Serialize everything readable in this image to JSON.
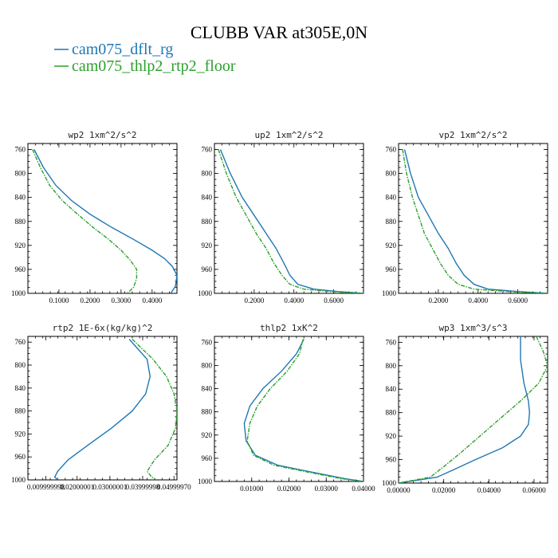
{
  "title": "CLUBB VAR at305E,0N",
  "legend": [
    {
      "name": "cam075_dflt_rg",
      "color": "#1f77b4"
    },
    {
      "name": "cam075_thlp2_rtp2_floor",
      "color": "#2ca02c"
    }
  ],
  "chart_data": [
    {
      "type": "line",
      "title": "wp2  1xm^2/s^2",
      "xlim": [
        0.0,
        0.48
      ],
      "ylim": [
        1000,
        750
      ],
      "xticks": [
        "0.1000",
        "0.2000",
        "0.3000",
        "0.4000"
      ],
      "xtick_values": [
        0.1,
        0.2,
        0.3,
        0.4
      ],
      "yticks": [
        "760",
        "800",
        "840",
        "880",
        "920",
        "960",
        "1000"
      ],
      "ytick_values": [
        760,
        800,
        840,
        880,
        920,
        960,
        1000
      ],
      "series": [
        {
          "name": "cam075_dflt_rg",
          "color": "#1f77b4",
          "x": [
            0.02,
            0.05,
            0.09,
            0.14,
            0.2,
            0.27,
            0.34,
            0.4,
            0.44,
            0.465,
            0.48,
            0.475,
            0.46
          ],
          "y": [
            760,
            790,
            820,
            845,
            868,
            890,
            910,
            928,
            942,
            955,
            970,
            988,
            1000
          ]
        },
        {
          "name": "cam075_thlp2_rtp2_floor",
          "color": "#2ca02c",
          "dash": true,
          "x": [
            0.015,
            0.04,
            0.07,
            0.11,
            0.16,
            0.21,
            0.26,
            0.3,
            0.33,
            0.35,
            0.35,
            0.34,
            0.32
          ],
          "y": [
            760,
            790,
            820,
            845,
            868,
            890,
            910,
            928,
            945,
            960,
            975,
            990,
            1000
          ]
        }
      ]
    },
    {
      "type": "line",
      "title": "up2  1xm^2/s^2",
      "xlim": [
        0.0,
        0.75
      ],
      "ylim": [
        1000,
        750
      ],
      "xticks": [
        "0.2000",
        "0.4000",
        "0.6000"
      ],
      "xtick_values": [
        0.2,
        0.4,
        0.6
      ],
      "yticks": [
        "760",
        "800",
        "840",
        "880",
        "920",
        "960",
        "1000"
      ],
      "ytick_values": [
        760,
        800,
        840,
        880,
        920,
        960,
        1000
      ],
      "series": [
        {
          "name": "cam075_dflt_rg",
          "color": "#1f77b4",
          "x": [
            0.03,
            0.08,
            0.14,
            0.2,
            0.26,
            0.31,
            0.35,
            0.38,
            0.42,
            0.5,
            0.62,
            0.75
          ],
          "y": [
            760,
            800,
            840,
            870,
            900,
            925,
            950,
            970,
            985,
            993,
            997,
            1000
          ]
        },
        {
          "name": "cam075_thlp2_rtp2_floor",
          "color": "#2ca02c",
          "dash": true,
          "x": [
            0.02,
            0.06,
            0.11,
            0.16,
            0.21,
            0.26,
            0.3,
            0.34,
            0.38,
            0.45,
            0.58,
            0.75
          ],
          "y": [
            760,
            800,
            840,
            870,
            900,
            925,
            950,
            970,
            985,
            993,
            997,
            1000
          ]
        }
      ]
    },
    {
      "type": "line",
      "title": "vp2  1xm^2/s^2",
      "xlim": [
        0.0,
        0.75
      ],
      "ylim": [
        1000,
        750
      ],
      "xticks": [
        "0.2000",
        "0.4000",
        "0.6000"
      ],
      "xtick_values": [
        0.2,
        0.4,
        0.6
      ],
      "yticks": [
        "760",
        "800",
        "840",
        "880",
        "920",
        "960",
        "1000"
      ],
      "ytick_values": [
        760,
        800,
        840,
        880,
        920,
        960,
        1000
      ],
      "series": [
        {
          "name": "cam075_dflt_rg",
          "color": "#1f77b4",
          "x": [
            0.03,
            0.06,
            0.1,
            0.15,
            0.2,
            0.25,
            0.29,
            0.33,
            0.38,
            0.45,
            0.6,
            0.75
          ],
          "y": [
            760,
            800,
            840,
            870,
            900,
            925,
            950,
            970,
            985,
            993,
            997,
            1000
          ]
        },
        {
          "name": "cam075_thlp2_rtp2_floor",
          "color": "#2ca02c",
          "dash": true,
          "x": [
            0.02,
            0.04,
            0.07,
            0.1,
            0.13,
            0.17,
            0.21,
            0.25,
            0.3,
            0.38,
            0.55,
            0.75
          ],
          "y": [
            760,
            800,
            840,
            870,
            900,
            925,
            950,
            970,
            985,
            993,
            997,
            1000
          ]
        }
      ]
    },
    {
      "type": "line",
      "title": "rtp2  1E-6x(kg/kg)^2",
      "xlim": [
        0.0,
        1.0
      ],
      "ylim": [
        1000,
        750
      ],
      "xticks": [
        "0.009999998",
        "0.02000001",
        "0.03000001",
        "0.03999998",
        "0.04999970"
      ],
      "xtick_values": [
        0.12,
        0.33,
        0.55,
        0.77,
        0.98
      ],
      "yticks": [
        "760",
        "800",
        "840",
        "880",
        "920",
        "960",
        "1000"
      ],
      "ytick_values": [
        760,
        800,
        840,
        880,
        920,
        960,
        1000
      ],
      "series": [
        {
          "name": "cam075_dflt_rg",
          "color": "#1f77b4",
          "x": [
            0.68,
            0.8,
            0.82,
            0.79,
            0.7,
            0.56,
            0.4,
            0.27,
            0.2,
            0.18,
            0.2
          ],
          "y": [
            755,
            790,
            820,
            850,
            880,
            910,
            940,
            965,
            985,
            995,
            1000
          ]
        },
        {
          "name": "cam075_thlp2_rtp2_floor",
          "color": "#2ca02c",
          "dash": true,
          "x": [
            0.7,
            0.84,
            0.93,
            0.98,
            1.0,
            0.99,
            0.94,
            0.85,
            0.8,
            0.83,
            0.86
          ],
          "y": [
            755,
            790,
            820,
            850,
            880,
            910,
            940,
            965,
            985,
            995,
            1000
          ]
        }
      ]
    },
    {
      "type": "line",
      "title": "thlp2  1xK^2",
      "xlim": [
        0.0,
        0.04
      ],
      "ylim": [
        1000,
        750
      ],
      "xticks": [
        "0.01000",
        "0.02000",
        "0.03000",
        "0.04000"
      ],
      "xtick_values": [
        0.01,
        0.02,
        0.03,
        0.04
      ],
      "yticks": [
        "760",
        "800",
        "840",
        "880",
        "920",
        "960",
        "1000"
      ],
      "ytick_values": [
        760,
        800,
        840,
        880,
        920,
        960,
        1000
      ],
      "series": [
        {
          "name": "cam075_dflt_rg",
          "color": "#1f77b4",
          "x": [
            0.024,
            0.022,
            0.018,
            0.013,
            0.0095,
            0.008,
            0.0085,
            0.011,
            0.017,
            0.027,
            0.035,
            0.04
          ],
          "y": [
            755,
            780,
            810,
            840,
            870,
            900,
            930,
            955,
            972,
            985,
            995,
            1000
          ]
        },
        {
          "name": "cam075_thlp2_rtp2_floor",
          "color": "#2ca02c",
          "dash": true,
          "x": [
            0.0238,
            0.0228,
            0.0195,
            0.015,
            0.0115,
            0.0095,
            0.0088,
            0.0105,
            0.016,
            0.026,
            0.034,
            0.04
          ],
          "y": [
            755,
            780,
            810,
            840,
            870,
            900,
            930,
            955,
            972,
            985,
            995,
            1000
          ]
        }
      ]
    },
    {
      "type": "line",
      "title": "wp3  1xm^3/s^3",
      "xlim": [
        0.0,
        0.066
      ],
      "ylim": [
        1000,
        750
      ],
      "xticks": [
        "0.00000",
        "0.02000",
        "0.04000",
        "0.06000"
      ],
      "xtick_values": [
        0.0,
        0.02,
        0.04,
        0.06
      ],
      "yticks": [
        "760",
        "800",
        "840",
        "880",
        "920",
        "960",
        "1000"
      ],
      "ytick_values": [
        760,
        800,
        840,
        880,
        920,
        960,
        1000
      ],
      "series": [
        {
          "name": "cam075_dflt_rg",
          "color": "#1f77b4",
          "x": [
            0.054,
            0.054,
            0.0555,
            0.0575,
            0.058,
            0.0575,
            0.054,
            0.046,
            0.034,
            0.024,
            0.017,
            0.0
          ],
          "y": [
            750,
            790,
            830,
            860,
            880,
            900,
            920,
            940,
            960,
            978,
            990,
            1000
          ]
        },
        {
          "name": "cam075_thlp2_rtp2_floor",
          "color": "#2ca02c",
          "dash": true,
          "x": [
            0.061,
            0.064,
            0.066,
            0.062,
            0.054,
            0.045,
            0.036,
            0.027,
            0.02,
            0.014,
            0.0
          ],
          "y": [
            750,
            775,
            800,
            830,
            860,
            890,
            920,
            950,
            972,
            990,
            1000
          ]
        }
      ]
    }
  ]
}
